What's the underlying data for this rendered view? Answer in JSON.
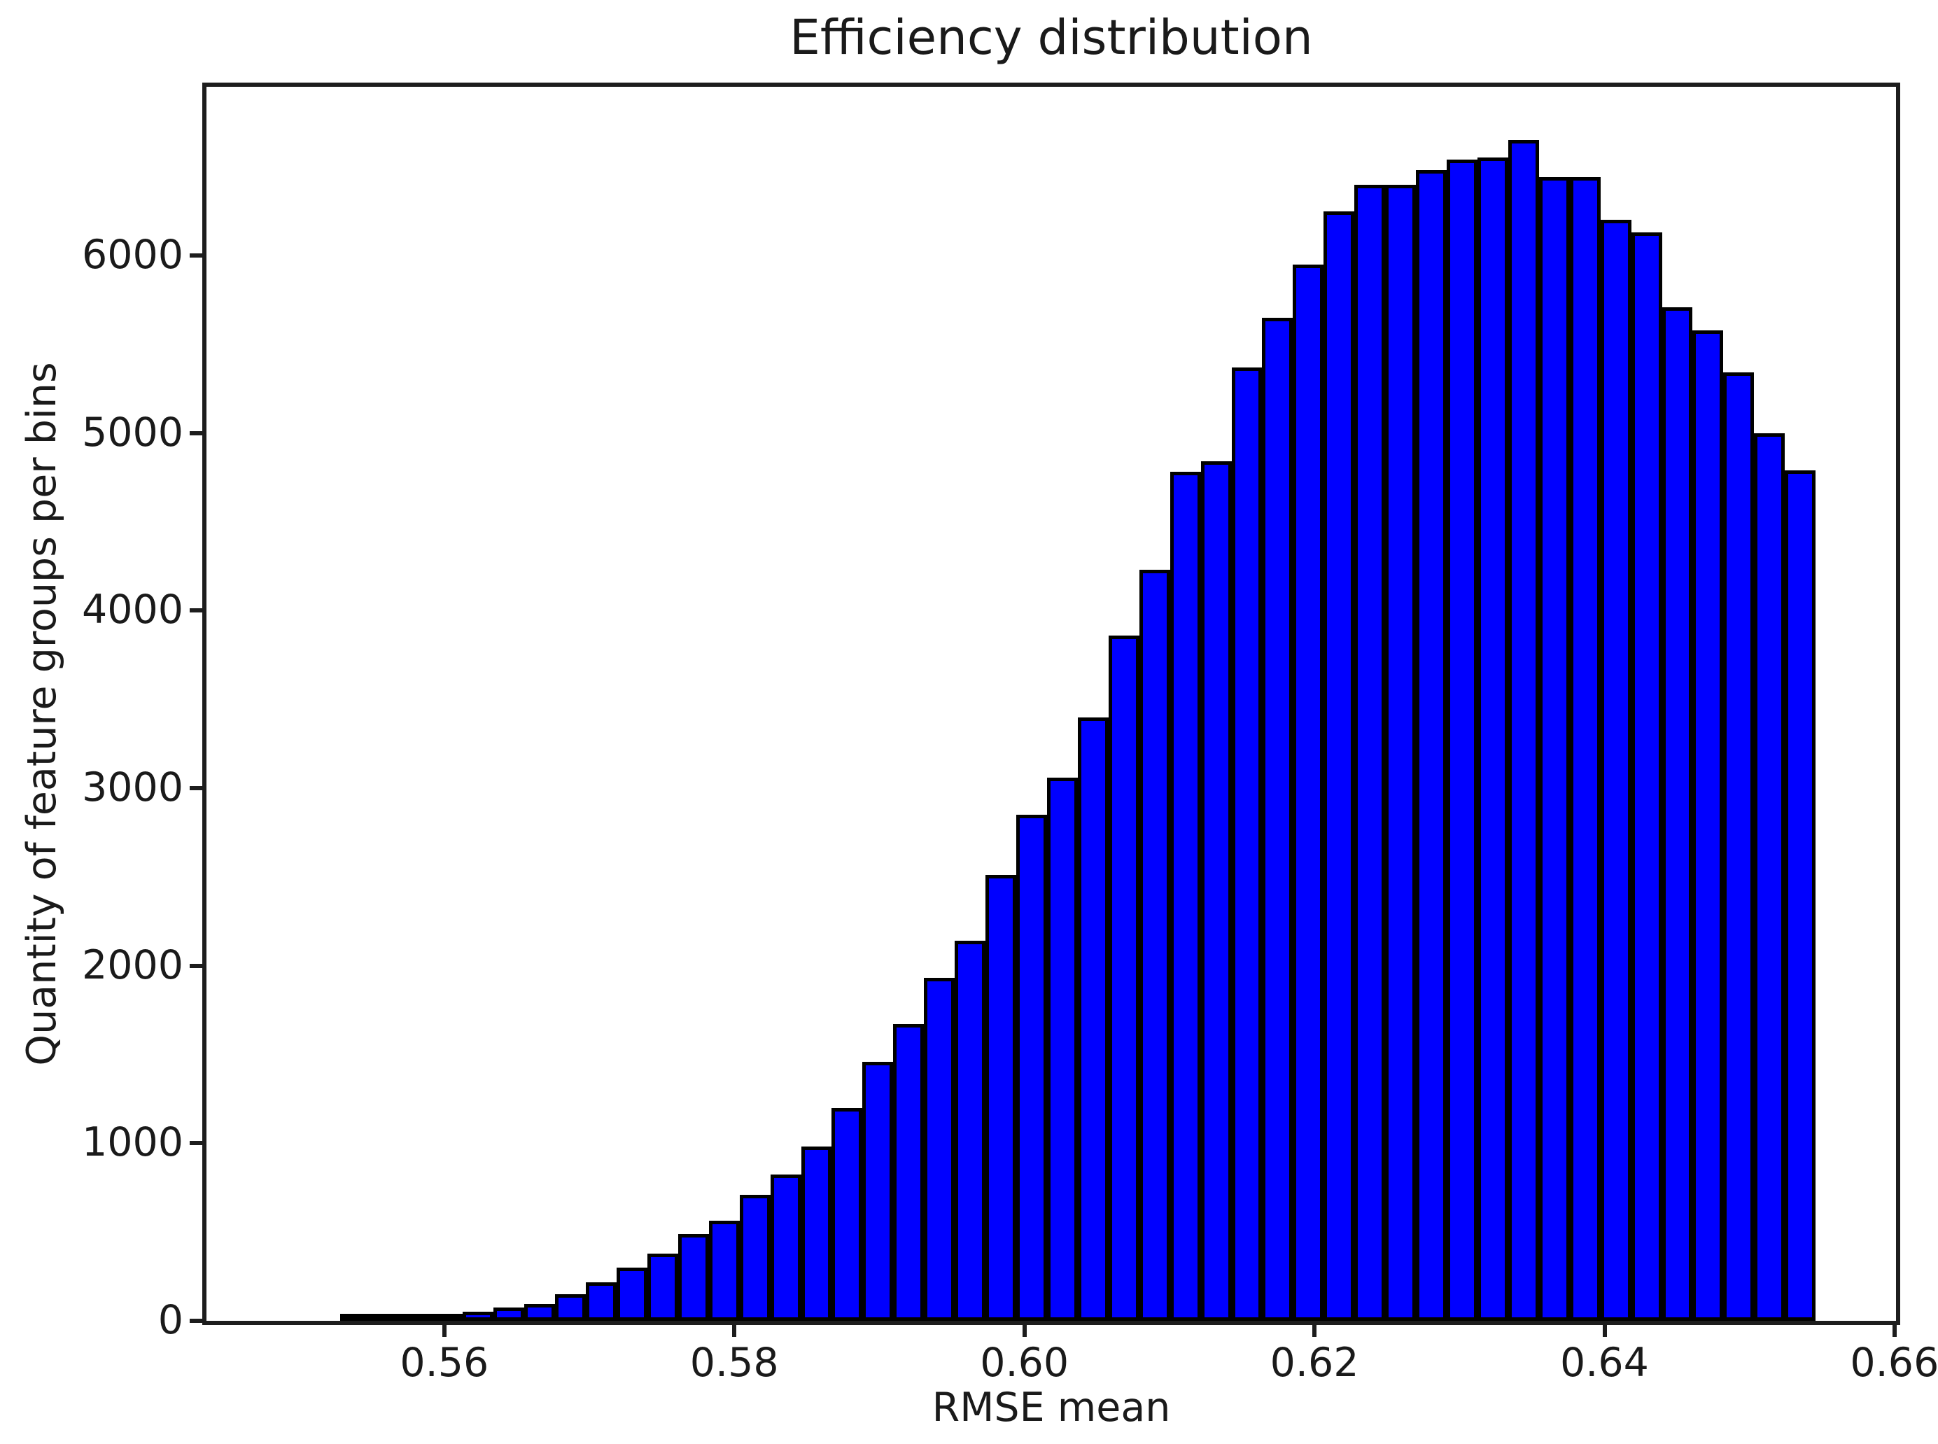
{
  "chart_data": {
    "type": "bar",
    "chart_kind": "histogram",
    "title": "Efficiency distribution",
    "xlabel": "RMSE mean",
    "ylabel": "Quantity of feature groups per bins",
    "bin_start": 0.5528,
    "bin_width": 0.00212,
    "values": [
      10,
      15,
      20,
      30,
      50,
      75,
      95,
      150,
      215,
      300,
      380,
      490,
      565,
      710,
      825,
      980,
      1200,
      1460,
      1670,
      1930,
      2140,
      2510,
      2850,
      3060,
      3400,
      3860,
      4230,
      4780,
      4840,
      5370,
      5650,
      5950,
      6250,
      6400,
      6400,
      6480,
      6540,
      6550,
      6650,
      6440,
      6440,
      6200,
      6130,
      5710,
      5580,
      5340,
      5000,
      4790
    ],
    "x_tick_values": [
      0.56,
      0.58,
      0.6,
      0.62,
      0.64,
      0.66
    ],
    "x_tick_labels": [
      "0.56",
      "0.58",
      "0.60",
      "0.62",
      "0.64",
      "0.66"
    ],
    "y_tick_values": [
      0,
      1000,
      2000,
      3000,
      4000,
      5000,
      6000
    ],
    "y_tick_labels": [
      "0",
      "1000",
      "2000",
      "3000",
      "4000",
      "5000",
      "6000"
    ],
    "xlim": [
      0.5436,
      0.6601
    ],
    "ylim": [
      0,
      6950
    ],
    "grid": false,
    "legend_position": null,
    "colors": {
      "bar_fill": "#0000ff",
      "bar_edge": "#000000",
      "axis": "#1d1d1d",
      "text": "#1a1a1a",
      "background": "#ffffff"
    }
  }
}
